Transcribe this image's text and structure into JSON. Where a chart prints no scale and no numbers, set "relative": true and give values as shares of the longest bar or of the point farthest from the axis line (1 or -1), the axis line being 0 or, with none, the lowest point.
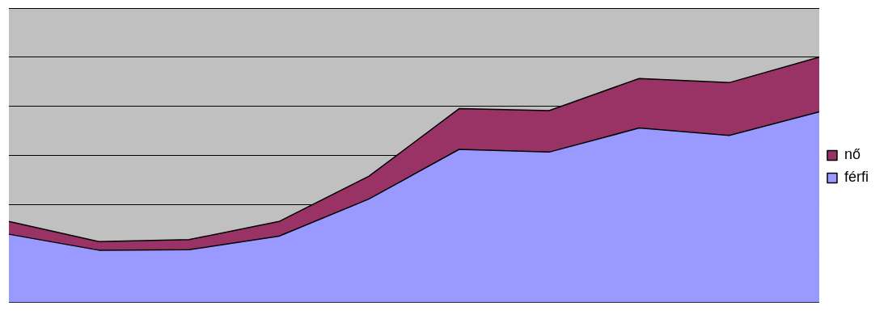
{
  "chart_data": {
    "type": "area",
    "relative": true,
    "stacked": true,
    "grid": "y",
    "legend": "right",
    "categories": [
      null,
      null,
      null,
      null,
      null,
      null,
      null,
      null,
      null,
      null
    ],
    "series": [
      {
        "name": "férfi",
        "color": "#9999ff",
        "values": [
          0.278,
          0.213,
          0.215,
          0.27,
          0.422,
          0.624,
          0.613,
          0.711,
          0.681,
          0.777
        ]
      },
      {
        "name": "nő",
        "color": "#993366",
        "values": [
          0.052,
          0.035,
          0.041,
          0.06,
          0.093,
          0.166,
          0.169,
          0.202,
          0.215,
          0.223
        ]
      }
    ]
  }
}
